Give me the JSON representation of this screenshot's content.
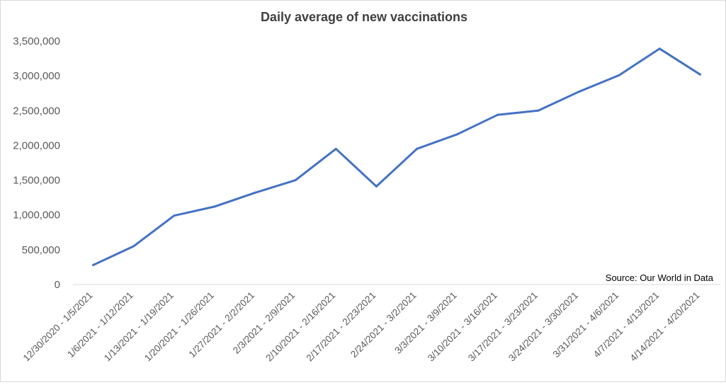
{
  "chart_data": {
    "type": "line",
    "title": "Daily average of new vaccinations",
    "xlabel": "",
    "ylabel": "",
    "ylim": [
      0,
      3500000
    ],
    "y_ticks": [
      "0",
      "500,000",
      "1,000,000",
      "1,500,000",
      "2,000,000",
      "2,500,000",
      "3,000,000",
      "3,500,000"
    ],
    "grid": false,
    "categories": [
      "12/30/2020 - 1/5/2021",
      "1/6/2021 - 1/12/2021",
      "1/13/2021 - 1/19/2021",
      "1/20/2021 - 1/26/2021",
      "1/27/2021 - 2/2/2021",
      "2/3/2021 - 2/9/2021",
      "2/10/2021 - 2/16/2021",
      "2/17/2021 - 2/23/2021",
      "2/24/2021 - 3/2/2021",
      "3/3/2021 - 3/9/2021",
      "3/10/2021 - 3/16/2021",
      "3/17/2021 - 3/23/2021",
      "3/24/2021 - 3/30/2021",
      "3/31/2021 - 4/6/2021",
      "4/7/2021 - 4/13/2021",
      "4/14/2021 - 4/20/2021"
    ],
    "series": [
      {
        "values": [
          280000,
          550000,
          990000,
          1120000,
          1320000,
          1500000,
          1950000,
          1410000,
          1950000,
          2160000,
          2440000,
          2500000,
          2770000,
          3010000,
          3390000,
          3020000
        ],
        "color": "#4472c4"
      }
    ],
    "annotations": [
      "Source: Our World in Data"
    ]
  }
}
